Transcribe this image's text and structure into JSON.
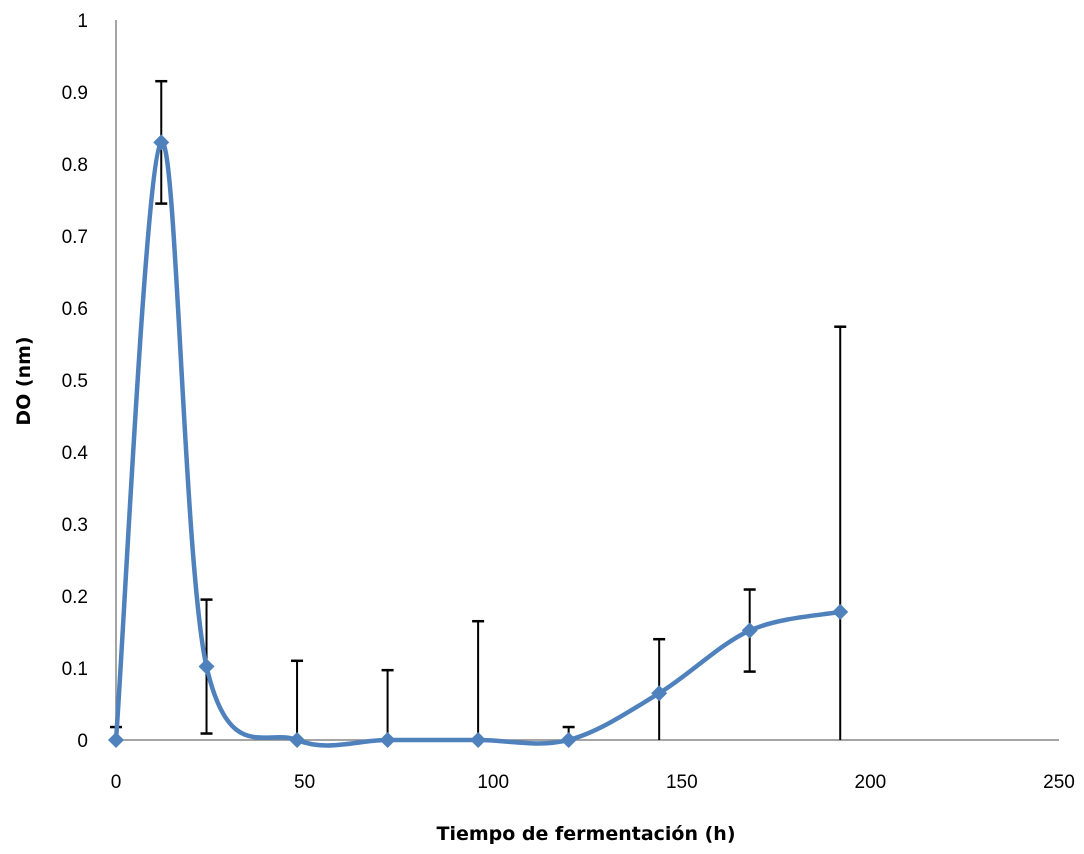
{
  "chart_data": {
    "type": "line",
    "title": "",
    "xlabel": "Tiempo de fermentación (h)",
    "ylabel": "DO (nm)",
    "xlim": [
      0,
      250
    ],
    "ylim": [
      0,
      1
    ],
    "x_ticks": [
      0,
      50,
      100,
      150,
      200,
      250
    ],
    "y_ticks": [
      0,
      0.1,
      0.2,
      0.3,
      0.4,
      0.5,
      0.6,
      0.7,
      0.8,
      0.9,
      1
    ],
    "grid": false,
    "legend": "none",
    "smooth": true,
    "colors": {
      "series": "#4F81BD",
      "error_bars": "#000000",
      "axis": "#878787"
    },
    "series": [
      {
        "x": [
          0,
          12,
          24,
          48,
          72,
          96,
          120,
          144,
          168,
          192
        ],
        "y": [
          0,
          0.83,
          0.102,
          0,
          0,
          0,
          0,
          0.065,
          0.152,
          0.178
        ],
        "error": [
          0.018,
          0.085,
          0.093,
          0.11,
          0.097,
          0.165,
          0.018,
          0.075,
          0.057,
          0.396
        ]
      }
    ]
  }
}
